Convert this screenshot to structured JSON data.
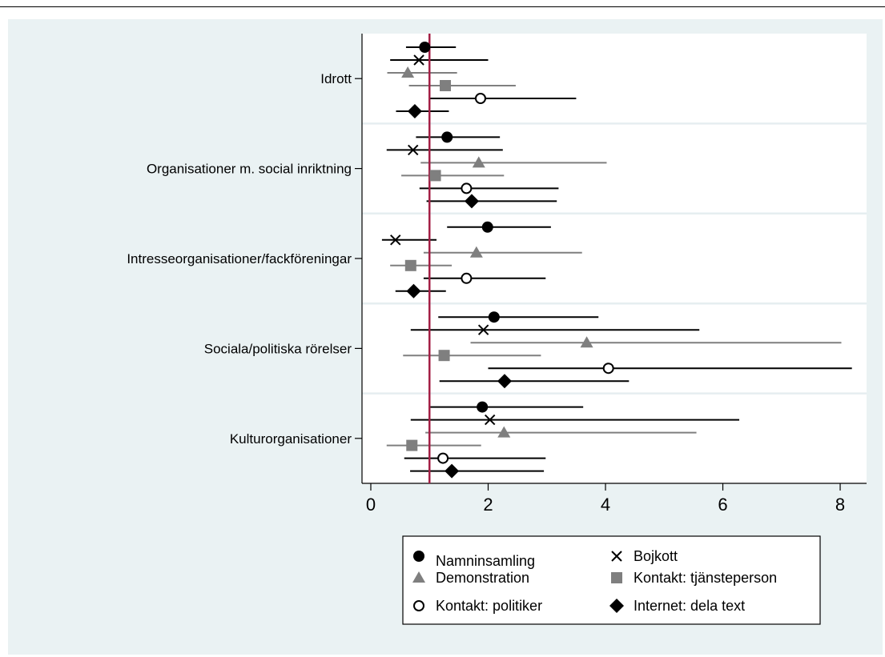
{
  "chart_data": {
    "type": "scatter",
    "subtype": "coefficient-plot-with-confidence-intervals",
    "title": "",
    "xlabel": "",
    "ylabel": "",
    "xlim": [
      -0.15,
      8.45
    ],
    "xticks": [
      0,
      2,
      4,
      6,
      8
    ],
    "xtick_labels": [
      "0",
      "2",
      "4",
      "6",
      "8"
    ],
    "reference_line": {
      "x": 1,
      "color": "#a31f45"
    },
    "grid": "horizontal-between-groups",
    "legend_placement": "bottom",
    "categories": [
      "Idrott",
      "Organisationer m. social inriktning",
      "Intresseorganisationer/fackföreningar",
      "Sociala/politiska rörelser",
      "Kulturorganisationer"
    ],
    "series": [
      {
        "name": "Namninsamling",
        "marker": "circle-filled",
        "color": "#000000",
        "points": [
          {
            "category": "Idrott",
            "estimate": 0.92,
            "low": 0.6,
            "high": 1.45
          },
          {
            "category": "Organisationer m. social inriktning",
            "estimate": 1.3,
            "low": 0.77,
            "high": 2.2
          },
          {
            "category": "Intresseorganisationer/fackföreningar",
            "estimate": 1.99,
            "low": 1.3,
            "high": 3.07
          },
          {
            "category": "Sociala/politiska rörelser",
            "estimate": 2.1,
            "low": 1.15,
            "high": 3.88
          },
          {
            "category": "Kulturorganisationer",
            "estimate": 1.9,
            "low": 1.0,
            "high": 3.62
          }
        ]
      },
      {
        "name": "Bojkott",
        "marker": "x",
        "color": "#000000",
        "points": [
          {
            "category": "Idrott",
            "estimate": 0.82,
            "low": 0.33,
            "high": 2.0
          },
          {
            "category": "Organisationer m. social inriktning",
            "estimate": 0.72,
            "low": 0.27,
            "high": 2.25
          },
          {
            "category": "Intresseorganisationer/fackföreningar",
            "estimate": 0.42,
            "low": 0.19,
            "high": 1.12
          },
          {
            "category": "Sociala/politiska rörelser",
            "estimate": 1.92,
            "low": 0.68,
            "high": 5.6
          },
          {
            "category": "Kulturorganisationer",
            "estimate": 2.03,
            "low": 0.68,
            "high": 6.28
          }
        ]
      },
      {
        "name": "Demonstration",
        "marker": "triangle-filled",
        "color": "#7f7f7f",
        "points": [
          {
            "category": "Idrott",
            "estimate": 0.63,
            "low": 0.28,
            "high": 1.47
          },
          {
            "category": "Organisationer m. social inriktning",
            "estimate": 1.84,
            "low": 0.85,
            "high": 4.02
          },
          {
            "category": "Intresseorganisationer/fackföreningar",
            "estimate": 1.8,
            "low": 0.9,
            "high": 3.6
          },
          {
            "category": "Sociala/politiska rörelser",
            "estimate": 3.68,
            "low": 1.7,
            "high": 8.02
          },
          {
            "category": "Kulturorganisationer",
            "estimate": 2.27,
            "low": 0.93,
            "high": 5.55
          }
        ]
      },
      {
        "name": "Kontakt: tjänsteperson",
        "marker": "square-filled",
        "color": "#7f7f7f",
        "points": [
          {
            "category": "Idrott",
            "estimate": 1.27,
            "low": 0.65,
            "high": 2.47
          },
          {
            "category": "Organisationer m. social inriktning",
            "estimate": 1.1,
            "low": 0.52,
            "high": 2.27
          },
          {
            "category": "Intresseorganisationer/fackföreningar",
            "estimate": 0.68,
            "low": 0.33,
            "high": 1.38
          },
          {
            "category": "Sociala/politiska rörelser",
            "estimate": 1.25,
            "low": 0.55,
            "high": 2.9
          },
          {
            "category": "Kulturorganisationer",
            "estimate": 0.7,
            "low": 0.27,
            "high": 1.88
          }
        ]
      },
      {
        "name": "Kontakt: politiker",
        "marker": "circle-hollow",
        "color": "#000000",
        "points": [
          {
            "category": "Idrott",
            "estimate": 1.87,
            "low": 1.0,
            "high": 3.5
          },
          {
            "category": "Organisationer m. social inriktning",
            "estimate": 1.63,
            "low": 0.83,
            "high": 3.2
          },
          {
            "category": "Intresseorganisationer/fackföreningar",
            "estimate": 1.63,
            "low": 0.9,
            "high": 2.98
          },
          {
            "category": "Sociala/politiska rörelser",
            "estimate": 4.05,
            "low": 2.0,
            "high": 8.2
          },
          {
            "category": "Kulturorganisationer",
            "estimate": 1.23,
            "low": 0.57,
            "high": 2.98
          }
        ]
      },
      {
        "name": "Internet: dela text",
        "marker": "diamond-filled",
        "color": "#000000",
        "points": [
          {
            "category": "Idrott",
            "estimate": 0.75,
            "low": 0.43,
            "high": 1.33
          },
          {
            "category": "Organisationer m. social inriktning",
            "estimate": 1.72,
            "low": 0.95,
            "high": 3.17
          },
          {
            "category": "Intresseorganisationer/fackföreningar",
            "estimate": 0.73,
            "low": 0.42,
            "high": 1.28
          },
          {
            "category": "Sociala/politiska rörelser",
            "estimate": 2.28,
            "low": 1.17,
            "high": 4.4
          },
          {
            "category": "Kulturorganisationer",
            "estimate": 1.38,
            "low": 0.67,
            "high": 2.95
          }
        ]
      }
    ],
    "legend": {
      "columns": 2,
      "order": [
        "Namninsamling",
        "Bojkott",
        "Demonstration",
        "Kontakt: tjänsteperson",
        "Kontakt: politiker",
        "Internet: dela text"
      ]
    }
  }
}
